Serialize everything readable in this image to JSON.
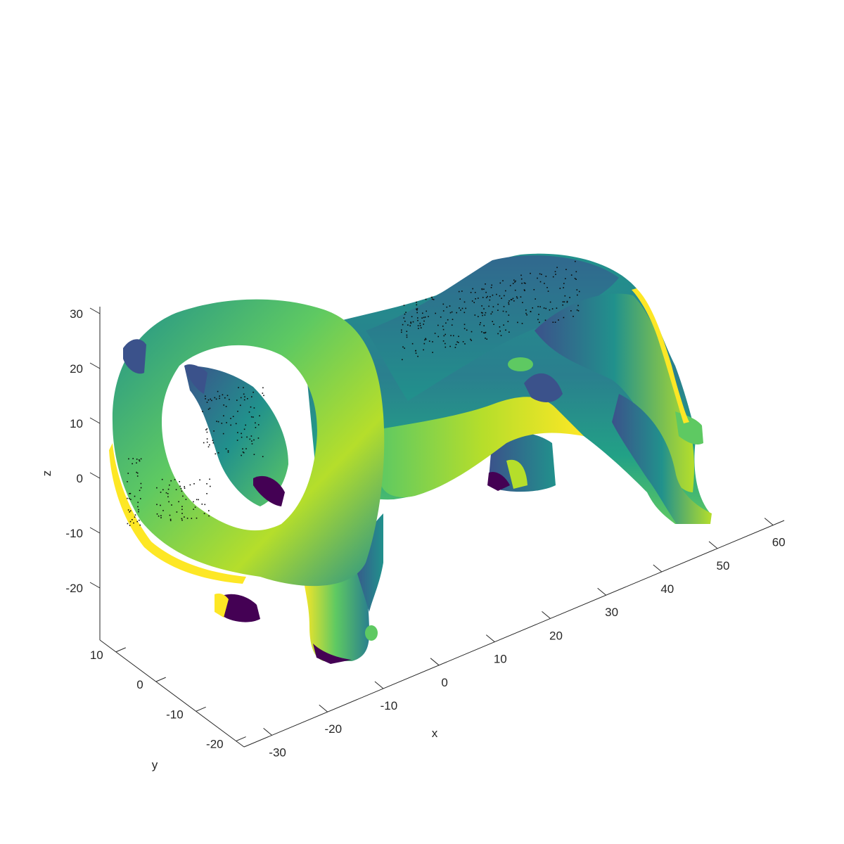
{
  "chart_data": {
    "type": "scatter",
    "subtype": "3d-point-cloud",
    "description_free": true,
    "xlabel": "x",
    "ylabel": "y",
    "zlabel": "z",
    "xlim": [
      -35,
      62
    ],
    "ylim": [
      -22,
      14
    ],
    "zlim": [
      -30,
      32
    ],
    "x_ticks": [
      -30,
      -20,
      -10,
      0,
      10,
      20,
      30,
      40,
      50,
      60
    ],
    "y_ticks": [
      -20,
      -10,
      0,
      10
    ],
    "z_ticks": [
      -20,
      -10,
      0,
      10,
      20,
      30
    ],
    "colormap": "viridis",
    "colormap_stops": [
      "#440154",
      "#3b528b",
      "#21918c",
      "#5ec962",
      "#fde725"
    ],
    "grid": false,
    "legend": "none"
  }
}
